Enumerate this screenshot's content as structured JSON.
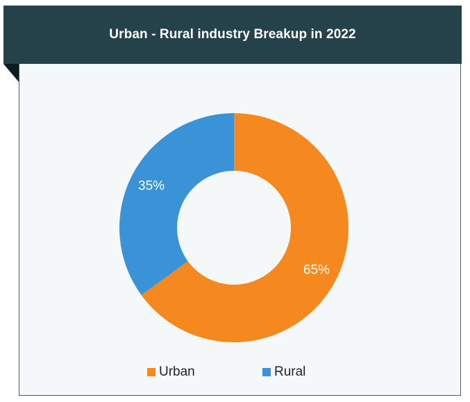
{
  "chart_data": {
    "type": "pie",
    "variant": "donut",
    "title": "Urban - Rural industry Breakup in 2022",
    "categories": [
      "Urban",
      "Rural"
    ],
    "values": [
      65,
      35
    ],
    "labels": [
      "65%",
      "35%"
    ],
    "colors": [
      "#f5881f",
      "#3993d6"
    ],
    "legend_position": "bottom"
  }
}
